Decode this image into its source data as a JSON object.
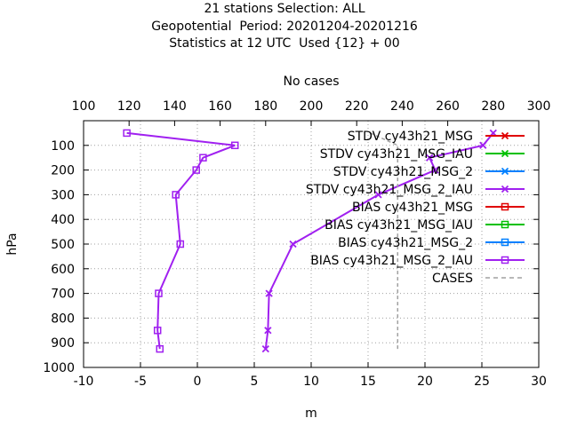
{
  "title_lines": [
    "21 stations Selection: ALL",
    "Geopotential  Period: 20201204-20201216",
    "Statistics at 12 UTC  Used {12} + 00"
  ],
  "chart_data": {
    "type": "line",
    "xlabel": "m",
    "ylabel": "hPa",
    "x2label": "No cases",
    "xlim": [
      -10,
      30
    ],
    "x2lim": [
      100,
      300
    ],
    "ylim": [
      1000,
      0
    ],
    "xticks": [
      -10,
      -5,
      0,
      5,
      10,
      15,
      20,
      25,
      30
    ],
    "x2ticks": [
      100,
      120,
      140,
      160,
      180,
      200,
      220,
      240,
      260,
      280,
      300
    ],
    "yticks": [
      100,
      200,
      300,
      400,
      500,
      600,
      700,
      800,
      900,
      1000
    ],
    "grid": true,
    "legend_position": "top-right",
    "series": [
      {
        "name": "STDV cy43h21_MSG",
        "color": "#e00000",
        "marker": "x",
        "style": "solid",
        "levels": [],
        "values": []
      },
      {
        "name": "STDV cy43h21_MSG_IAU",
        "color": "#00c000",
        "marker": "x",
        "style": "solid",
        "levels": [],
        "values": []
      },
      {
        "name": "STDV cy43h21_MSG_2",
        "color": "#0080ff",
        "marker": "x",
        "style": "solid",
        "levels": [],
        "values": []
      },
      {
        "name": "STDV cy43h21_MSG_2_IAU",
        "color": "#a020f0",
        "marker": "x",
        "style": "solid",
        "levels": [
          50,
          100,
          150,
          200,
          300,
          500,
          700,
          850,
          925
        ],
        "values": [
          26.0,
          25.1,
          20.4,
          20.9,
          15.9,
          8.4,
          6.3,
          6.2,
          6.0
        ]
      },
      {
        "name": "BIAS cy43h21_MSG",
        "color": "#e00000",
        "marker": "square",
        "style": "solid",
        "levels": [],
        "values": []
      },
      {
        "name": "BIAS cy43h21_MSG_IAU",
        "color": "#00c000",
        "marker": "square",
        "style": "solid",
        "levels": [],
        "values": []
      },
      {
        "name": "BIAS cy43h21_MSG_2",
        "color": "#0080ff",
        "marker": "square",
        "style": "solid",
        "levels": [],
        "values": []
      },
      {
        "name": "BIAS cy43h21_MSG_2_IAU",
        "color": "#a020f0",
        "marker": "square",
        "style": "solid",
        "levels": [
          50,
          100,
          150,
          200,
          300,
          500,
          700,
          850,
          925
        ],
        "values": [
          -6.2,
          3.3,
          0.5,
          -0.1,
          -1.9,
          -1.5,
          -3.4,
          -3.5,
          -3.3
        ]
      },
      {
        "name": "CASES",
        "color": "#a0a0a0",
        "marker": "none",
        "style": "dashed",
        "axis": "x2",
        "levels": [
          50,
          100,
          150,
          200,
          300,
          500,
          700,
          850,
          925
        ],
        "values": [
          226,
          238,
          238,
          238,
          238,
          238,
          238,
          238,
          238
        ]
      }
    ]
  }
}
